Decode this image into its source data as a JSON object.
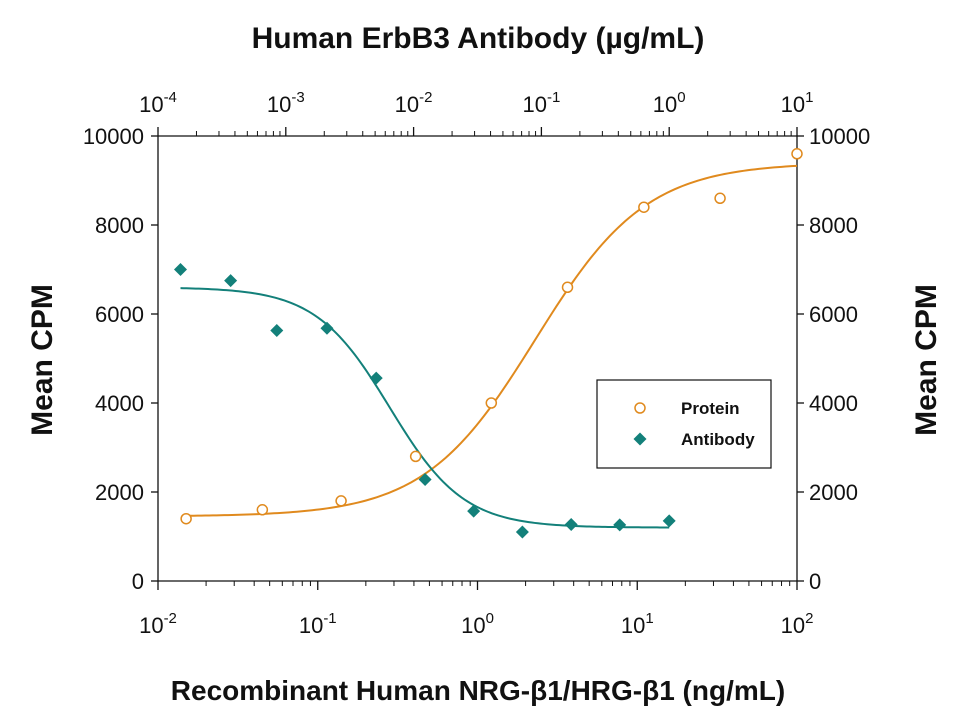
{
  "chart_data": {
    "type": "scatter",
    "title": "Human ErbB3 Antibody (µg/mL)",
    "xlabel": "Recombinant Human NRG-β1/HRG-β1 (ng/mL)",
    "ylabel": "Mean CPM",
    "ylabel_right": "Mean CPM",
    "x_scale": "log",
    "xlim": [
      0.01,
      100
    ],
    "ylim": [
      0,
      10000
    ],
    "y_ticks": [
      0,
      2000,
      4000,
      6000,
      8000,
      10000
    ],
    "x_ticks_bottom": [
      {
        "base": "10",
        "exp": "-2"
      },
      {
        "base": "10",
        "exp": "-1"
      },
      {
        "base": "10",
        "exp": "0"
      },
      {
        "base": "10",
        "exp": "1"
      },
      {
        "base": "10",
        "exp": "2"
      }
    ],
    "top_axis": {
      "scale": "log",
      "xlim": [
        0.0001,
        10
      ],
      "ticks": [
        {
          "base": "10",
          "exp": "-4"
        },
        {
          "base": "10",
          "exp": "-3"
        },
        {
          "base": "10",
          "exp": "-2"
        },
        {
          "base": "10",
          "exp": "-1"
        },
        {
          "base": "10",
          "exp": "0"
        },
        {
          "base": "10",
          "exp": "1"
        }
      ]
    },
    "legend_position": "right-middle",
    "series": [
      {
        "name": "Protein",
        "axis": "bottom",
        "marker": "circle-open",
        "color": "#E08A1E",
        "x": [
          0.015,
          0.045,
          0.14,
          0.41,
          1.22,
          3.66,
          11,
          33,
          100
        ],
        "y": [
          1400,
          1600,
          1800,
          2800,
          4000,
          6600,
          8400,
          8600,
          9600
        ],
        "fit": {
          "bottom": 1450,
          "top": 9400,
          "ec50": 2.3,
          "hill": 1.25
        }
      },
      {
        "name": "Antibody",
        "axis": "top",
        "marker": "diamond-filled",
        "color": "#13807A",
        "x": [
          0.00015,
          0.00037,
          0.00085,
          0.0021,
          0.0051,
          0.0123,
          0.0295,
          0.071,
          0.171,
          0.41,
          1.0
        ],
        "y": [
          7000,
          6750,
          5630,
          5680,
          4560,
          2280,
          1570,
          1100,
          1270,
          1260,
          1350
        ],
        "fit": {
          "bottom": 1200,
          "top": 6600,
          "ec50": 0.0065,
          "hill": 1.5
        }
      }
    ]
  }
}
